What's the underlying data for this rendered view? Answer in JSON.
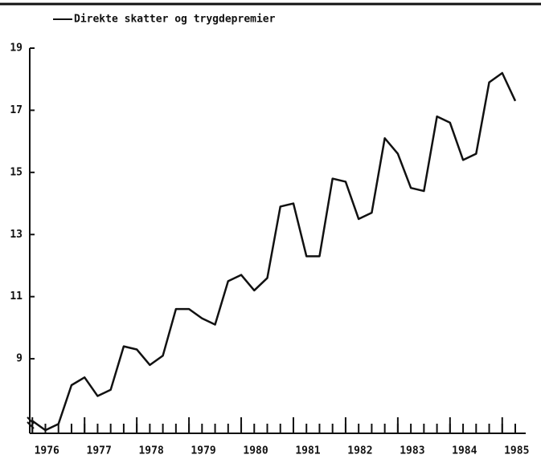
{
  "chart_data": {
    "type": "line",
    "x": [
      1976,
      1976.25,
      1976.5,
      1976.75,
      1977,
      1977.25,
      1977.5,
      1977.75,
      1978,
      1978.25,
      1978.5,
      1978.75,
      1979,
      1979.25,
      1979.5,
      1979.75,
      1980,
      1980.25,
      1980.5,
      1980.75,
      1981,
      1981.25,
      1981.5,
      1981.75,
      1982,
      1982.25,
      1982.5,
      1982.75,
      1983,
      1983.25,
      1983.5,
      1983.75,
      1984,
      1984.25,
      1984.5,
      1984.75,
      1985,
      1985.25
    ],
    "series": [
      {
        "name": "Direkte skatter og trygdepremier",
        "color": "#111111",
        "values": [
          7.0,
          6.7,
          6.9,
          8.15,
          8.4,
          7.8,
          8.0,
          9.4,
          9.3,
          8.8,
          9.1,
          10.6,
          10.6,
          10.3,
          10.1,
          11.5,
          11.7,
          11.2,
          11.6,
          13.9,
          14.0,
          12.3,
          12.3,
          14.8,
          14.7,
          13.5,
          13.7,
          16.1,
          15.6,
          14.5,
          14.4,
          16.8,
          16.6,
          15.4,
          15.6,
          17.9,
          18.2,
          17.3
        ]
      }
    ],
    "xlim": [
      1975.95,
      1985.45
    ],
    "xticks": [
      1976,
      1977,
      1978,
      1979,
      1980,
      1981,
      1982,
      1983,
      1984,
      1985
    ],
    "ylim": [
      6.6,
      19
    ],
    "yticks": [
      9,
      11,
      13,
      15,
      17,
      19
    ]
  }
}
